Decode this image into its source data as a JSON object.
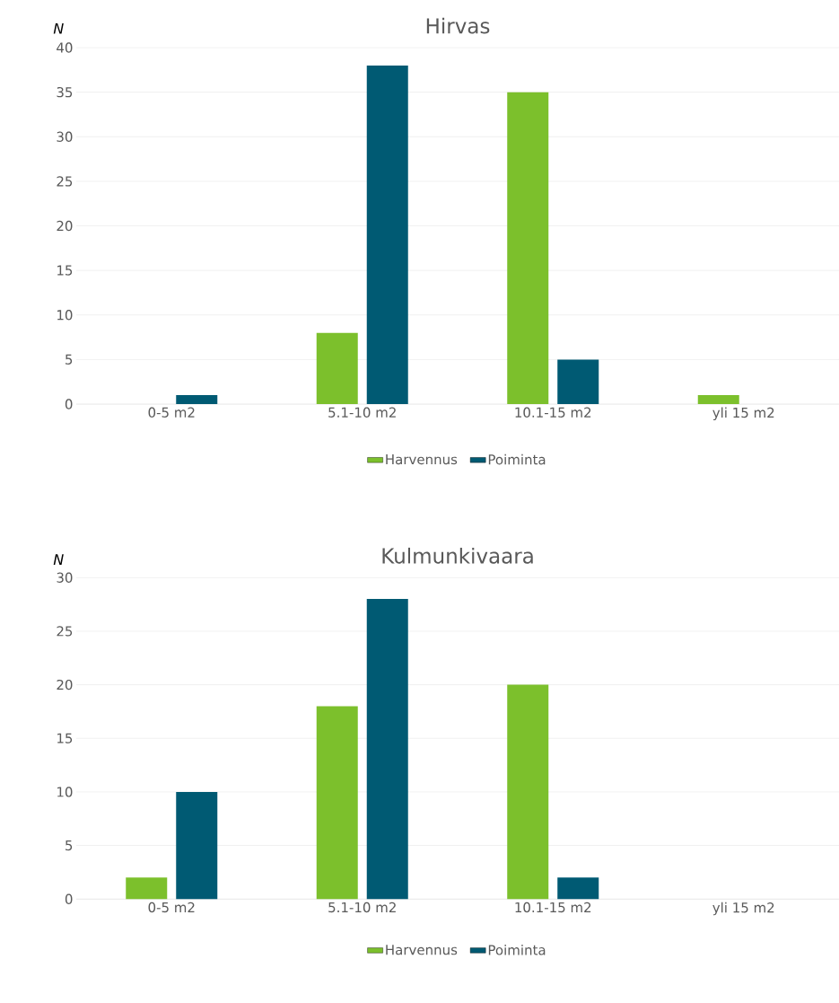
{
  "chart_data": [
    {
      "type": "bar",
      "title": "Hirvas",
      "ylabel": "N",
      "categories": [
        "0-5 m2",
        "5.1-10 m2",
        "10.1-15 m2",
        "yli 15 m2"
      ],
      "series": [
        {
          "name": "Harvennus",
          "color": "#7cc02c",
          "values": [
            0,
            8,
            35,
            1
          ]
        },
        {
          "name": "Poiminta",
          "color": "#005a73",
          "values": [
            1,
            38,
            5,
            0
          ]
        }
      ],
      "ylim": [
        0,
        40
      ],
      "yticks": [
        0,
        5,
        10,
        15,
        20,
        25,
        30,
        35,
        40
      ],
      "grid": "y",
      "legend": "bottom"
    },
    {
      "type": "bar",
      "title": "Kulmunkivaara",
      "ylabel": "N",
      "categories": [
        "0-5 m2",
        "5.1-10 m2",
        "10.1-15 m2",
        "yli 15 m2"
      ],
      "series": [
        {
          "name": "Harvennus",
          "color": "#7cc02c",
          "values": [
            2,
            18,
            20,
            0
          ]
        },
        {
          "name": "Poiminta",
          "color": "#005a73",
          "values": [
            10,
            28,
            2,
            0
          ]
        }
      ],
      "ylim": [
        0,
        30
      ],
      "yticks": [
        0,
        5,
        10,
        15,
        20,
        25,
        30
      ],
      "grid": "y",
      "legend": "bottom"
    }
  ]
}
